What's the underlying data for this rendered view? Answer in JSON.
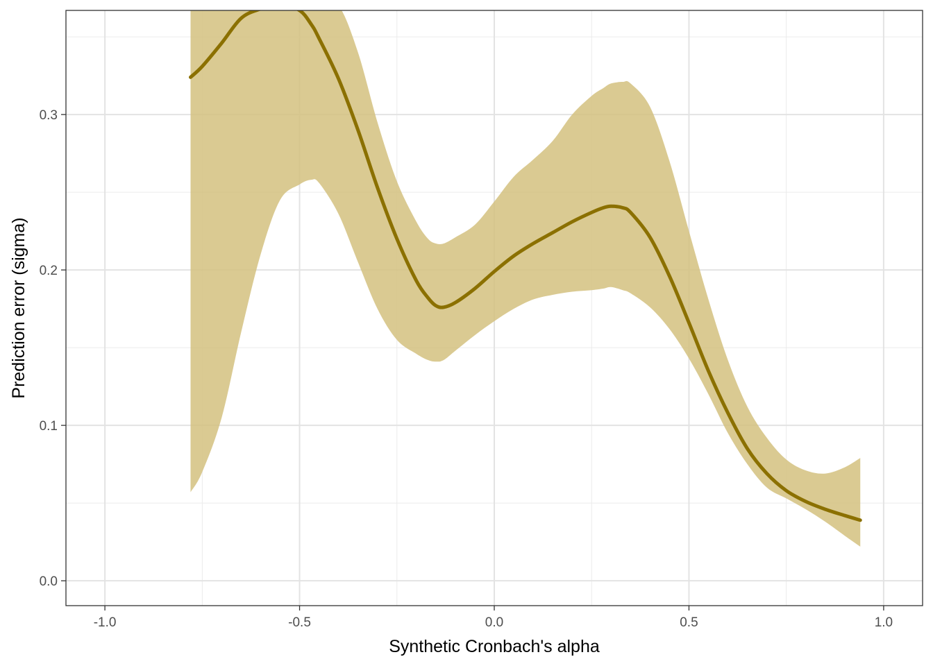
{
  "chart_data": {
    "type": "line",
    "title": "",
    "xlabel": "Synthetic Cronbach's alpha",
    "ylabel": "Prediction error (sigma)",
    "xlim": [
      -1.1,
      1.1
    ],
    "ylim": [
      -0.016,
      0.367
    ],
    "x_ticks": [
      -1.0,
      -0.5,
      0.0,
      0.5,
      1.0
    ],
    "x_tick_labels": [
      "-1.0",
      "-0.5",
      "0.0",
      "0.5",
      "1.0"
    ],
    "y_ticks": [
      0.0,
      0.1,
      0.2,
      0.3
    ],
    "y_tick_labels": [
      "0.0",
      "0.1",
      "0.2",
      "0.3"
    ],
    "grid": true,
    "legend": "none",
    "colors": {
      "line": "#8b7000",
      "band": "#d4c17f",
      "panel_border": "#333333",
      "grid": "#ebebeb"
    },
    "series": [
      {
        "x": [
          -0.78,
          -0.75,
          -0.7,
          -0.65,
          -0.6,
          -0.55,
          -0.5,
          -0.47,
          -0.45,
          -0.4,
          -0.35,
          -0.3,
          -0.25,
          -0.2,
          -0.17,
          -0.15,
          -0.13,
          -0.1,
          -0.05,
          0.0,
          0.05,
          0.1,
          0.15,
          0.2,
          0.25,
          0.28,
          0.3,
          0.33,
          0.35,
          0.4,
          0.45,
          0.5,
          0.55,
          0.6,
          0.65,
          0.7,
          0.75,
          0.8,
          0.85,
          0.9,
          0.94
        ],
        "y": [
          0.324,
          0.331,
          0.346,
          0.362,
          0.368,
          0.371,
          0.367,
          0.358,
          0.349,
          0.323,
          0.29,
          0.253,
          0.22,
          0.193,
          0.182,
          0.177,
          0.176,
          0.179,
          0.188,
          0.199,
          0.209,
          0.217,
          0.224,
          0.231,
          0.237,
          0.24,
          0.241,
          0.24,
          0.237,
          0.221,
          0.196,
          0.166,
          0.135,
          0.108,
          0.085,
          0.069,
          0.058,
          0.051,
          0.046,
          0.042,
          0.039
        ],
        "lower": [
          0.057,
          0.07,
          0.105,
          0.16,
          0.21,
          0.245,
          0.255,
          0.258,
          0.256,
          0.236,
          0.205,
          0.175,
          0.155,
          0.146,
          0.142,
          0.141,
          0.142,
          0.148,
          0.158,
          0.167,
          0.175,
          0.181,
          0.184,
          0.186,
          0.187,
          0.188,
          0.189,
          0.187,
          0.185,
          0.176,
          0.162,
          0.143,
          0.12,
          0.095,
          0.075,
          0.06,
          0.053,
          0.046,
          0.038,
          0.029,
          0.022
        ],
        "upper": [
          0.37,
          0.37,
          0.37,
          0.37,
          0.37,
          0.37,
          0.37,
          0.37,
          0.37,
          0.37,
          0.34,
          0.295,
          0.257,
          0.231,
          0.22,
          0.217,
          0.217,
          0.221,
          0.229,
          0.244,
          0.26,
          0.271,
          0.283,
          0.3,
          0.312,
          0.317,
          0.32,
          0.321,
          0.32,
          0.305,
          0.27,
          0.225,
          0.181,
          0.142,
          0.112,
          0.092,
          0.078,
          0.071,
          0.069,
          0.073,
          0.079
        ]
      }
    ]
  }
}
